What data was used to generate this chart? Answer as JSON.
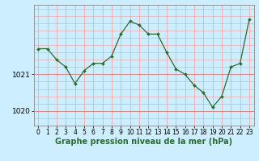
{
  "hours": [
    0,
    1,
    2,
    3,
    4,
    5,
    6,
    7,
    8,
    9,
    10,
    11,
    12,
    13,
    14,
    15,
    16,
    17,
    18,
    19,
    20,
    21,
    22,
    23
  ],
  "pressure": [
    1021.7,
    1021.7,
    1021.4,
    1021.2,
    1020.75,
    1021.1,
    1021.3,
    1021.3,
    1021.5,
    1022.1,
    1022.45,
    1022.35,
    1022.1,
    1022.1,
    1021.6,
    1021.15,
    1021.0,
    1020.7,
    1020.5,
    1020.1,
    1020.4,
    1021.2,
    1021.3,
    1022.5
  ],
  "ylim": [
    1019.6,
    1022.9
  ],
  "yticks": [
    1020,
    1021
  ],
  "xlabel": "Graphe pression niveau de la mer (hPa)",
  "xticks": [
    0,
    1,
    2,
    3,
    4,
    5,
    6,
    7,
    8,
    9,
    10,
    11,
    12,
    13,
    14,
    15,
    16,
    17,
    18,
    19,
    20,
    21,
    22,
    23
  ],
  "line_color": "#2d6a2d",
  "marker_color": "#2d6a2d",
  "bg_color": "#cceeff",
  "grid_color_h": "#ff9999",
  "grid_color_v": "#ccddcc",
  "xlabel_fontsize": 7.0,
  "tick_fontsize": 5.5,
  "ytick_fontsize": 6.5
}
